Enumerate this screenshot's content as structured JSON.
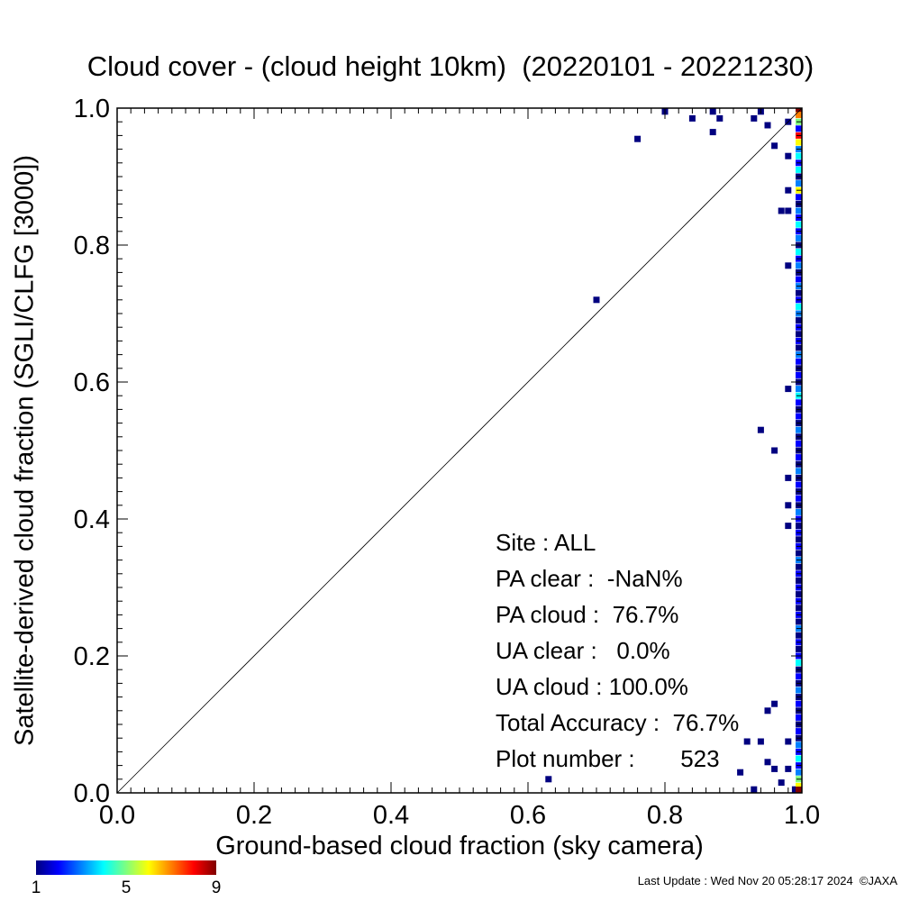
{
  "title": "Cloud cover - (cloud height 10km)  (20220101 - 20221230)",
  "chart_data": {
    "type": "heatmap",
    "title": "Cloud cover - (cloud height 10km)  (20220101 - 20221230)",
    "xlabel": "Ground-based cloud fraction (sky camera)",
    "ylabel": "Satellite-derived cloud fraction (SGLI/CLFG [3000])",
    "xlim": [
      0.0,
      1.0
    ],
    "ylim": [
      0.0,
      1.0
    ],
    "xticks": [
      "0.0",
      "0.2",
      "0.4",
      "0.6",
      "0.8",
      "1.0"
    ],
    "yticks": [
      "0.0",
      "0.2",
      "0.4",
      "0.6",
      "0.8",
      "1.0"
    ],
    "reference_line": "y = x",
    "colorbar": {
      "min": 1,
      "max": 9,
      "ticks": [
        "1",
        "5",
        "9"
      ]
    },
    "points": [
      {
        "x": 0.63,
        "y": 0.02,
        "n": 1
      },
      {
        "x": 0.7,
        "y": 0.72,
        "n": 1
      },
      {
        "x": 0.76,
        "y": 0.955,
        "n": 1
      },
      {
        "x": 0.8,
        "y": 0.995,
        "n": 1
      },
      {
        "x": 0.84,
        "y": 0.985,
        "n": 1
      },
      {
        "x": 0.87,
        "y": 0.965,
        "n": 1
      },
      {
        "x": 0.87,
        "y": 0.995,
        "n": 1
      },
      {
        "x": 0.88,
        "y": 0.985,
        "n": 1
      },
      {
        "x": 0.93,
        "y": 0.985,
        "n": 1
      },
      {
        "x": 0.94,
        "y": 0.995,
        "n": 1
      },
      {
        "x": 0.95,
        "y": 0.975,
        "n": 1
      },
      {
        "x": 0.96,
        "y": 0.945,
        "n": 1
      },
      {
        "x": 0.97,
        "y": 0.85,
        "n": 1
      },
      {
        "x": 0.98,
        "y": 0.77,
        "n": 1
      },
      {
        "x": 0.94,
        "y": 0.53,
        "n": 1
      },
      {
        "x": 0.96,
        "y": 0.5,
        "n": 1
      },
      {
        "x": 0.98,
        "y": 0.59,
        "n": 1
      },
      {
        "x": 0.98,
        "y": 0.46,
        "n": 1
      },
      {
        "x": 0.98,
        "y": 0.42,
        "n": 1
      },
      {
        "x": 0.98,
        "y": 0.39,
        "n": 1
      },
      {
        "x": 0.96,
        "y": 0.13,
        "n": 1
      },
      {
        "x": 0.95,
        "y": 0.12,
        "n": 1
      },
      {
        "x": 0.92,
        "y": 0.075,
        "n": 1
      },
      {
        "x": 0.94,
        "y": 0.075,
        "n": 1
      },
      {
        "x": 0.91,
        "y": 0.03,
        "n": 1
      },
      {
        "x": 0.95,
        "y": 0.045,
        "n": 1
      },
      {
        "x": 0.96,
        "y": 0.035,
        "n": 1
      },
      {
        "x": 0.98,
        "y": 0.035,
        "n": 1
      },
      {
        "x": 0.93,
        "y": 0.005,
        "n": 1
      },
      {
        "x": 0.97,
        "y": 0.015,
        "n": 1
      },
      {
        "x": 0.99,
        "y": 0.005,
        "n": 1
      },
      {
        "x": 0.98,
        "y": 0.98,
        "n": 1
      },
      {
        "x": 0.98,
        "y": 0.93,
        "n": 1
      },
      {
        "x": 0.98,
        "y": 0.88,
        "n": 1
      },
      {
        "x": 0.98,
        "y": 0.85,
        "n": 1
      },
      {
        "x": 0.98,
        "y": 0.075,
        "n": 1
      },
      {
        "x": 1.0,
        "y": 1.0,
        "n": 9
      },
      {
        "x": 1.0,
        "y": 0.99,
        "n": 7
      },
      {
        "x": 1.0,
        "y": 0.98,
        "n": 5
      },
      {
        "x": 1.0,
        "y": 0.97,
        "n": 2
      },
      {
        "x": 1.0,
        "y": 0.96,
        "n": 8
      },
      {
        "x": 1.0,
        "y": 0.95,
        "n": 6
      },
      {
        "x": 1.0,
        "y": 0.94,
        "n": 3
      },
      {
        "x": 1.0,
        "y": 0.93,
        "n": 4
      },
      {
        "x": 1.0,
        "y": 0.92,
        "n": 2
      },
      {
        "x": 1.0,
        "y": 0.91,
        "n": 4
      },
      {
        "x": 1.0,
        "y": 0.9,
        "n": 1
      },
      {
        "x": 1.0,
        "y": 0.89,
        "n": 3
      },
      {
        "x": 1.0,
        "y": 0.88,
        "n": 6
      },
      {
        "x": 1.0,
        "y": 0.87,
        "n": 2
      },
      {
        "x": 1.0,
        "y": 0.86,
        "n": 1
      },
      {
        "x": 1.0,
        "y": 0.85,
        "n": 3
      },
      {
        "x": 1.0,
        "y": 0.84,
        "n": 2
      },
      {
        "x": 1.0,
        "y": 0.83,
        "n": 4
      },
      {
        "x": 1.0,
        "y": 0.82,
        "n": 2
      },
      {
        "x": 1.0,
        "y": 0.81,
        "n": 3
      },
      {
        "x": 1.0,
        "y": 0.8,
        "n": 1
      },
      {
        "x": 1.0,
        "y": 0.79,
        "n": 4
      },
      {
        "x": 1.0,
        "y": 0.78,
        "n": 2
      },
      {
        "x": 1.0,
        "y": 0.77,
        "n": 3
      },
      {
        "x": 1.0,
        "y": 0.76,
        "n": 1
      },
      {
        "x": 1.0,
        "y": 0.75,
        "n": 2
      },
      {
        "x": 1.0,
        "y": 0.74,
        "n": 3
      },
      {
        "x": 1.0,
        "y": 0.73,
        "n": 1
      },
      {
        "x": 1.0,
        "y": 0.72,
        "n": 2
      },
      {
        "x": 1.0,
        "y": 0.71,
        "n": 4
      },
      {
        "x": 1.0,
        "y": 0.7,
        "n": 3
      },
      {
        "x": 1.0,
        "y": 0.69,
        "n": 1
      },
      {
        "x": 1.0,
        "y": 0.68,
        "n": 2
      },
      {
        "x": 1.0,
        "y": 0.67,
        "n": 1
      },
      {
        "x": 1.0,
        "y": 0.66,
        "n": 2
      },
      {
        "x": 1.0,
        "y": 0.65,
        "n": 1
      },
      {
        "x": 1.0,
        "y": 0.64,
        "n": 3
      },
      {
        "x": 1.0,
        "y": 0.63,
        "n": 2
      },
      {
        "x": 1.0,
        "y": 0.62,
        "n": 1
      },
      {
        "x": 1.0,
        "y": 0.61,
        "n": 2
      },
      {
        "x": 1.0,
        "y": 0.6,
        "n": 1
      },
      {
        "x": 1.0,
        "y": 0.59,
        "n": 3
      },
      {
        "x": 1.0,
        "y": 0.58,
        "n": 4
      },
      {
        "x": 1.0,
        "y": 0.57,
        "n": 2
      },
      {
        "x": 1.0,
        "y": 0.56,
        "n": 1
      },
      {
        "x": 1.0,
        "y": 0.55,
        "n": 2
      },
      {
        "x": 1.0,
        "y": 0.54,
        "n": 1
      },
      {
        "x": 1.0,
        "y": 0.53,
        "n": 3
      },
      {
        "x": 1.0,
        "y": 0.52,
        "n": 1
      },
      {
        "x": 1.0,
        "y": 0.51,
        "n": 2
      },
      {
        "x": 1.0,
        "y": 0.5,
        "n": 1
      },
      {
        "x": 1.0,
        "y": 0.49,
        "n": 2
      },
      {
        "x": 1.0,
        "y": 0.48,
        "n": 1
      },
      {
        "x": 1.0,
        "y": 0.47,
        "n": 3
      },
      {
        "x": 1.0,
        "y": 0.46,
        "n": 1
      },
      {
        "x": 1.0,
        "y": 0.45,
        "n": 2
      },
      {
        "x": 1.0,
        "y": 0.44,
        "n": 1
      },
      {
        "x": 1.0,
        "y": 0.43,
        "n": 2
      },
      {
        "x": 1.0,
        "y": 0.42,
        "n": 1
      },
      {
        "x": 1.0,
        "y": 0.41,
        "n": 3
      },
      {
        "x": 1.0,
        "y": 0.4,
        "n": 2
      },
      {
        "x": 1.0,
        "y": 0.39,
        "n": 1
      },
      {
        "x": 1.0,
        "y": 0.38,
        "n": 2
      },
      {
        "x": 1.0,
        "y": 0.37,
        "n": 1
      },
      {
        "x": 1.0,
        "y": 0.36,
        "n": 2
      },
      {
        "x": 1.0,
        "y": 0.35,
        "n": 1
      },
      {
        "x": 1.0,
        "y": 0.34,
        "n": 3
      },
      {
        "x": 1.0,
        "y": 0.33,
        "n": 1
      },
      {
        "x": 1.0,
        "y": 0.32,
        "n": 2
      },
      {
        "x": 1.0,
        "y": 0.31,
        "n": 1
      },
      {
        "x": 1.0,
        "y": 0.3,
        "n": 2
      },
      {
        "x": 1.0,
        "y": 0.29,
        "n": 1
      },
      {
        "x": 1.0,
        "y": 0.28,
        "n": 2
      },
      {
        "x": 1.0,
        "y": 0.27,
        "n": 1
      },
      {
        "x": 1.0,
        "y": 0.26,
        "n": 2
      },
      {
        "x": 1.0,
        "y": 0.25,
        "n": 1
      },
      {
        "x": 1.0,
        "y": 0.24,
        "n": 3
      },
      {
        "x": 1.0,
        "y": 0.23,
        "n": 1
      },
      {
        "x": 1.0,
        "y": 0.22,
        "n": 2
      },
      {
        "x": 1.0,
        "y": 0.21,
        "n": 1
      },
      {
        "x": 1.0,
        "y": 0.2,
        "n": 2
      },
      {
        "x": 1.0,
        "y": 0.19,
        "n": 4
      },
      {
        "x": 1.0,
        "y": 0.18,
        "n": 1
      },
      {
        "x": 1.0,
        "y": 0.17,
        "n": 2
      },
      {
        "x": 1.0,
        "y": 0.16,
        "n": 1
      },
      {
        "x": 1.0,
        "y": 0.15,
        "n": 3
      },
      {
        "x": 1.0,
        "y": 0.14,
        "n": 1
      },
      {
        "x": 1.0,
        "y": 0.13,
        "n": 2
      },
      {
        "x": 1.0,
        "y": 0.12,
        "n": 1
      },
      {
        "x": 1.0,
        "y": 0.11,
        "n": 2
      },
      {
        "x": 1.0,
        "y": 0.1,
        "n": 1
      },
      {
        "x": 1.0,
        "y": 0.09,
        "n": 2
      },
      {
        "x": 1.0,
        "y": 0.08,
        "n": 1
      },
      {
        "x": 1.0,
        "y": 0.07,
        "n": 3
      },
      {
        "x": 1.0,
        "y": 0.06,
        "n": 2
      },
      {
        "x": 1.0,
        "y": 0.05,
        "n": 4
      },
      {
        "x": 1.0,
        "y": 0.04,
        "n": 2
      },
      {
        "x": 1.0,
        "y": 0.03,
        "n": 3
      },
      {
        "x": 1.0,
        "y": 0.02,
        "n": 5
      },
      {
        "x": 1.0,
        "y": 0.01,
        "n": 6
      },
      {
        "x": 1.0,
        "y": 0.0,
        "n": 9
      }
    ]
  },
  "stats": {
    "site": "Site : ALL",
    "pa_clear": "PA clear :  -NaN%",
    "pa_cloud": "PA cloud :  76.7%",
    "ua_clear": "UA clear :   0.0%",
    "ua_cloud": "UA cloud : 100.0%",
    "total_accuracy": "Total Accuracy :  76.7%",
    "plot_number": "Plot number :       523"
  },
  "footer": "Last Update : Wed Nov 20 05:28:17 2024  ©JAXA",
  "colors": {
    "low": "#00007f",
    "high": "#d40000",
    "reference_line": "#000000"
  }
}
